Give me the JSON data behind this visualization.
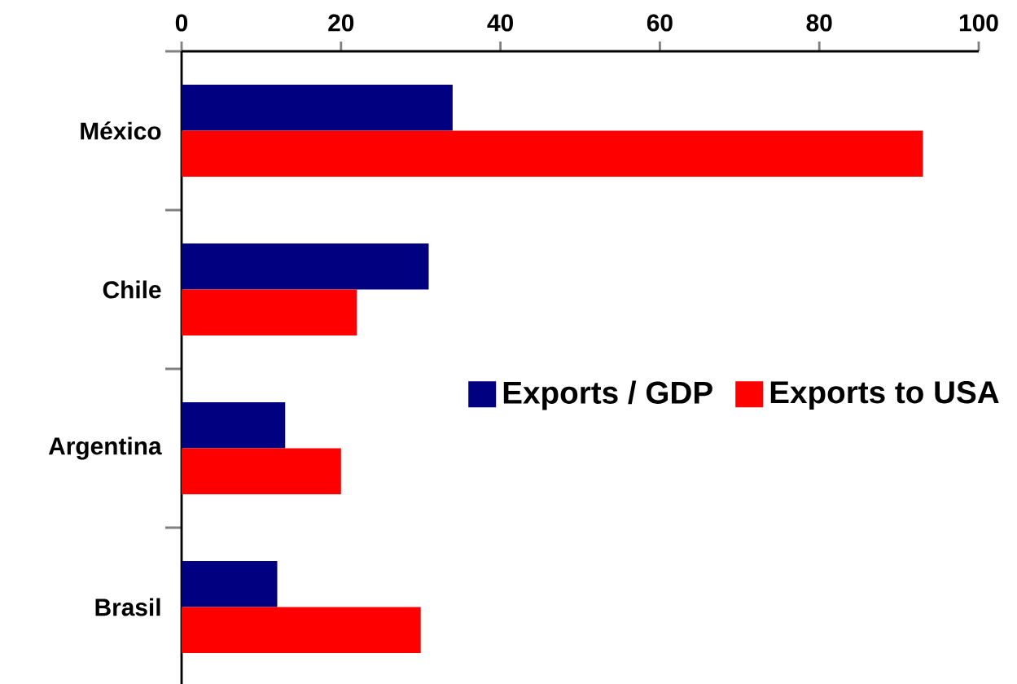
{
  "chart_data": {
    "type": "bar",
    "orientation": "horizontal",
    "categories": [
      "México",
      "Chile",
      "Argentina",
      "Brasil"
    ],
    "series": [
      {
        "name": "Exports / GDP",
        "color": "#000080",
        "values": [
          34,
          31,
          13,
          12
        ]
      },
      {
        "name": "Exports to USA",
        "color": "#ff0000",
        "values": [
          93,
          22,
          20,
          30
        ]
      }
    ],
    "xlim": [
      0,
      100
    ],
    "xticks": [
      0,
      20,
      40,
      60,
      80,
      100
    ],
    "legend": "right"
  }
}
